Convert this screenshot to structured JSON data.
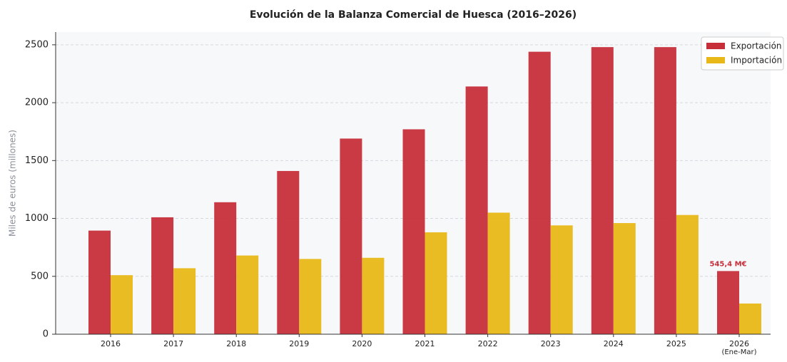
{
  "chart_data": {
    "type": "bar",
    "title": "Evolución de la Balanza Comercial de Huesca (2016–2026)",
    "ylabel": "Miles de euros (millones)",
    "categories": [
      "2016",
      "2017",
      "2018",
      "2019",
      "2020",
      "2021",
      "2022",
      "2023",
      "2024",
      "2025",
      "2026\n(Ene-Mar)"
    ],
    "series": [
      {
        "name": "Exportación",
        "color": "#c62f3a",
        "values": [
          895,
          1010,
          1140,
          1410,
          1690,
          1770,
          2140,
          2440,
          2480,
          2480,
          545.4
        ],
        "value_labels": [
          null,
          null,
          null,
          null,
          null,
          null,
          null,
          null,
          null,
          null,
          "545,4 M€"
        ]
      },
      {
        "name": "Importación",
        "color": "#e8b818",
        "values": [
          510,
          570,
          680,
          650,
          660,
          880,
          1050,
          940,
          960,
          1030,
          265
        ]
      }
    ],
    "ylim": [
      0,
      2610
    ],
    "yticks": [
      0,
      500,
      1000,
      1500,
      2000,
      2500
    ],
    "grid": true,
    "legend": "upper right"
  }
}
